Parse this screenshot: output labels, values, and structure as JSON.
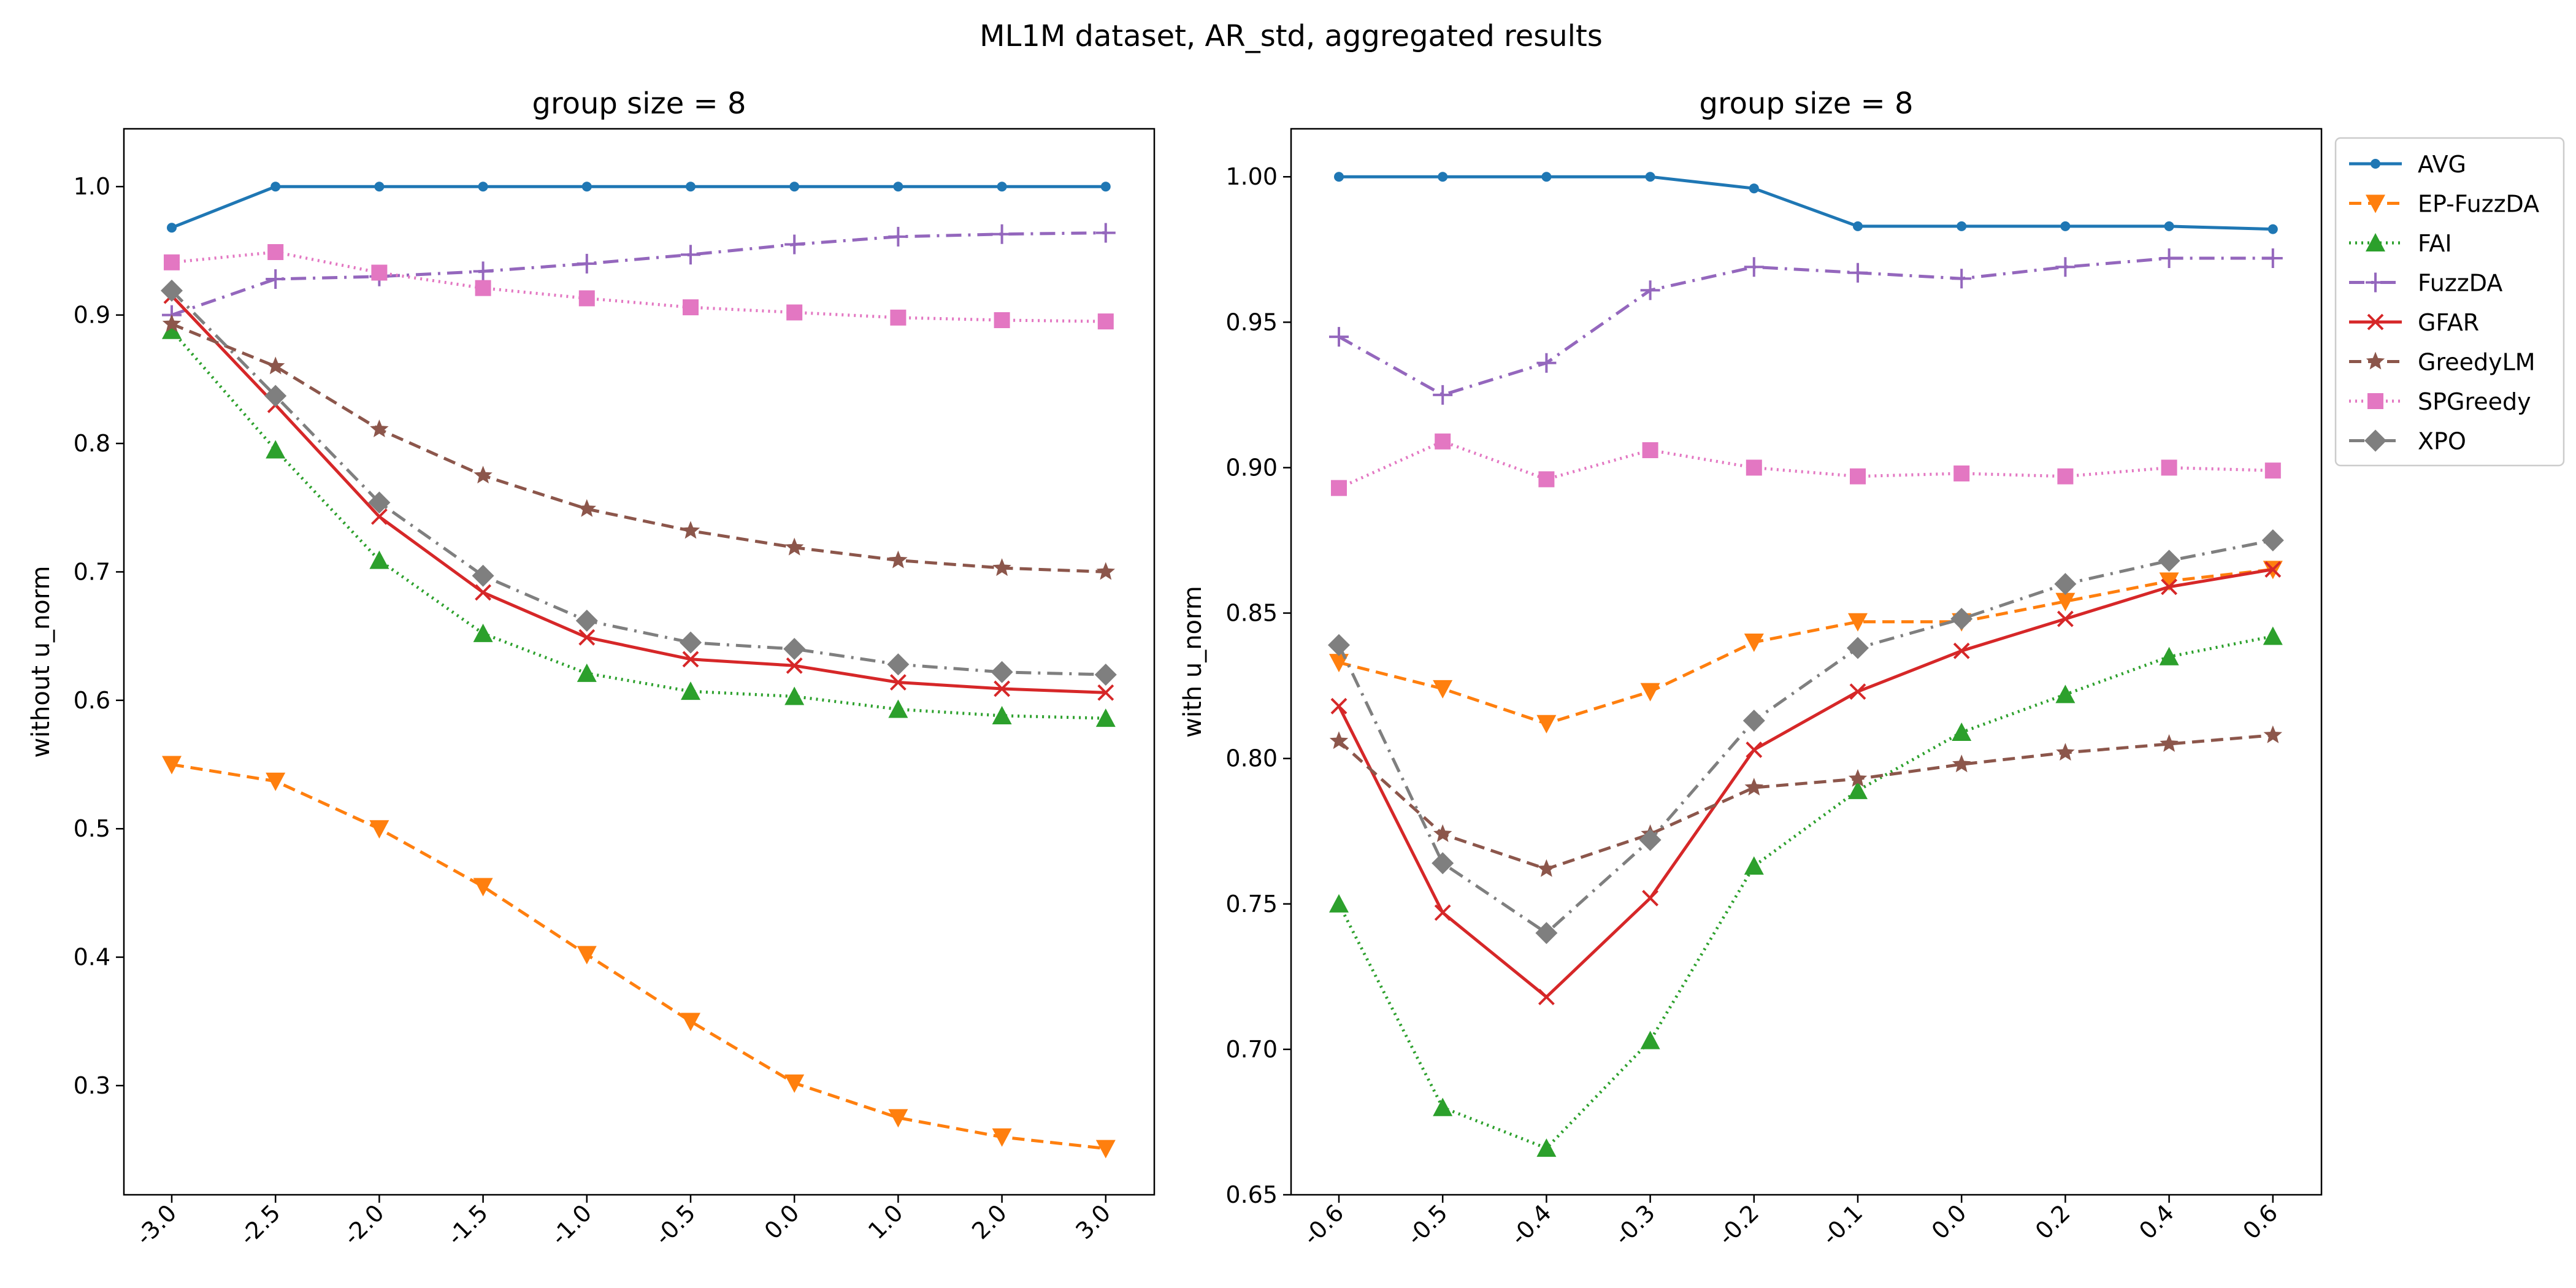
{
  "figure": {
    "title": "ML1M dataset, AR_std, aggregated results"
  },
  "styles": {
    "AVG": {
      "color": "#1f77b4",
      "dash": "",
      "marker": "dot"
    },
    "EP-FuzzDA": {
      "color": "#ff7f0e",
      "dash": "20,11",
      "marker": "tri-down"
    },
    "FAI": {
      "color": "#2ca02c",
      "dash": "3,7",
      "marker": "tri-up"
    },
    "FuzzDA": {
      "color": "#9467bd",
      "dash": "25,11,4,11",
      "marker": "plus"
    },
    "GFAR": {
      "color": "#d62728",
      "dash": "",
      "marker": "x"
    },
    "GreedyLM": {
      "color": "#8c564b",
      "dash": "20,11",
      "marker": "star"
    },
    "SPGreedy": {
      "color": "#e377c2",
      "dash": "3,7",
      "marker": "square"
    },
    "XPO": {
      "color": "#7f7f7f",
      "dash": "25,11,4,11",
      "marker": "diamond"
    }
  },
  "legend": {
    "position": "upper right, outside right panel",
    "entries": [
      "AVG",
      "EP-FuzzDA",
      "FAI",
      "FuzzDA",
      "GFAR",
      "GreedyLM",
      "SPGreedy",
      "XPO"
    ]
  },
  "chart_data": [
    {
      "type": "line",
      "title": "group size = 8",
      "xlabel": "",
      "ylabel": "without u_norm",
      "categories": [
        "-3.0",
        "-2.5",
        "-2.0",
        "-1.5",
        "-1.0",
        "-0.5",
        "0.0",
        "1.0",
        "2.0",
        "3.0"
      ],
      "ylim": [
        0.215,
        1.045
      ],
      "yticks": [
        "0.3",
        "0.4",
        "0.5",
        "0.6",
        "0.7",
        "0.8",
        "0.9",
        "1.0"
      ],
      "grid": false,
      "series": [
        {
          "name": "AVG",
          "values": [
            0.968,
            1.0,
            1.0,
            1.0,
            1.0,
            1.0,
            1.0,
            1.0,
            1.0,
            1.0
          ]
        },
        {
          "name": "EP-FuzzDA",
          "values": [
            0.55,
            0.537,
            0.5,
            0.455,
            0.402,
            0.35,
            0.302,
            0.275,
            0.26,
            0.251
          ]
        },
        {
          "name": "FAI",
          "values": [
            0.888,
            0.795,
            0.709,
            0.652,
            0.621,
            0.607,
            0.603,
            0.593,
            0.588,
            0.586
          ]
        },
        {
          "name": "FuzzDA",
          "values": [
            0.9,
            0.928,
            0.93,
            0.934,
            0.94,
            0.947,
            0.955,
            0.961,
            0.963,
            0.964
          ]
        },
        {
          "name": "GFAR",
          "values": [
            0.915,
            0.83,
            0.743,
            0.684,
            0.649,
            0.632,
            0.627,
            0.614,
            0.609,
            0.606
          ]
        },
        {
          "name": "GreedyLM",
          "values": [
            0.893,
            0.86,
            0.811,
            0.775,
            0.749,
            0.732,
            0.719,
            0.709,
            0.703,
            0.7
          ]
        },
        {
          "name": "SPGreedy",
          "values": [
            0.941,
            0.949,
            0.933,
            0.921,
            0.913,
            0.906,
            0.902,
            0.898,
            0.896,
            0.895
          ]
        },
        {
          "name": "XPO",
          "values": [
            0.919,
            0.837,
            0.754,
            0.697,
            0.662,
            0.645,
            0.64,
            0.628,
            0.622,
            0.62
          ]
        }
      ]
    },
    {
      "type": "line",
      "title": "group size = 8",
      "xlabel": "",
      "ylabel": "with u_norm",
      "categories": [
        "-0.6",
        "-0.5",
        "-0.4",
        "-0.3",
        "-0.2",
        "-0.1",
        "0.0",
        "0.2",
        "0.4",
        "0.6"
      ],
      "ylim": [
        0.65,
        1.0165
      ],
      "yticks": [
        "0.65",
        "0.70",
        "0.75",
        "0.80",
        "0.85",
        "0.90",
        "0.95",
        "1.00"
      ],
      "grid": false,
      "series": [
        {
          "name": "AVG",
          "values": [
            1.0,
            1.0,
            1.0,
            1.0,
            0.996,
            0.983,
            0.983,
            0.983,
            0.983,
            0.982
          ]
        },
        {
          "name": "EP-FuzzDA",
          "values": [
            0.833,
            0.824,
            0.812,
            0.823,
            0.84,
            0.847,
            0.847,
            0.854,
            0.861,
            0.865
          ]
        },
        {
          "name": "FAI",
          "values": [
            0.75,
            0.68,
            0.666,
            0.703,
            0.763,
            0.789,
            0.809,
            0.822,
            0.835,
            0.842
          ]
        },
        {
          "name": "FuzzDA",
          "values": [
            0.945,
            0.925,
            0.936,
            0.961,
            0.969,
            0.967,
            0.965,
            0.969,
            0.972,
            0.972
          ]
        },
        {
          "name": "GFAR",
          "values": [
            0.818,
            0.747,
            0.718,
            0.752,
            0.803,
            0.823,
            0.837,
            0.848,
            0.859,
            0.865
          ]
        },
        {
          "name": "GreedyLM",
          "values": [
            0.806,
            0.774,
            0.762,
            0.774,
            0.79,
            0.793,
            0.798,
            0.802,
            0.805,
            0.808
          ]
        },
        {
          "name": "SPGreedy",
          "values": [
            0.893,
            0.909,
            0.896,
            0.906,
            0.9,
            0.897,
            0.898,
            0.897,
            0.9,
            0.899
          ]
        },
        {
          "name": "XPO",
          "values": [
            0.839,
            0.764,
            0.74,
            0.772,
            0.813,
            0.838,
            0.848,
            0.86,
            0.868,
            0.875
          ]
        }
      ]
    }
  ]
}
